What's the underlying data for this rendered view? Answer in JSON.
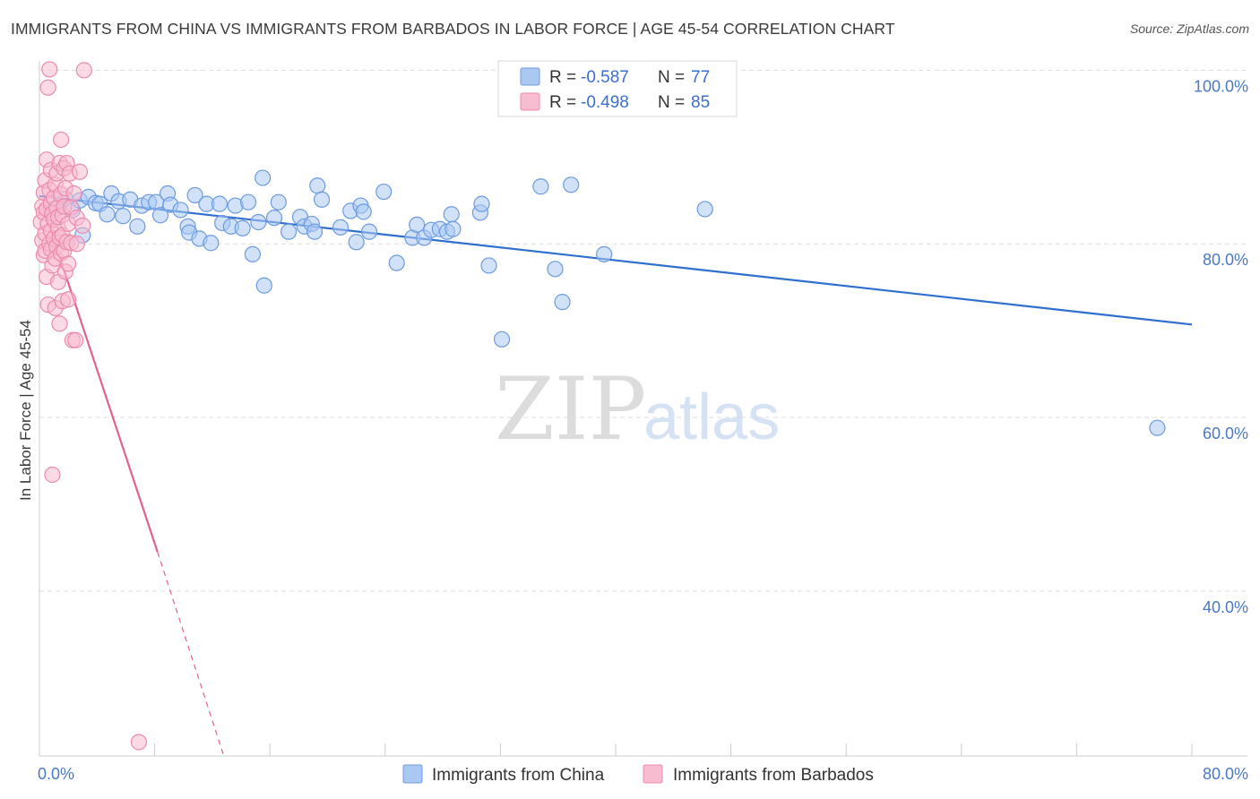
{
  "header": {
    "title": "IMMIGRANTS FROM CHINA VS IMMIGRANTS FROM BARBADOS IN LABOR FORCE | AGE 45-54 CORRELATION CHART",
    "source": "Source: ZipAtlas.com"
  },
  "watermark": {
    "zip": "ZIP",
    "atlas": "atlas"
  },
  "legend": {
    "china": {
      "r_label": "R =",
      "r_value": "-0.587",
      "n_label": "N =",
      "n_value": "77"
    },
    "barbados": {
      "r_label": "R =",
      "r_value": "-0.498",
      "n_label": "N =",
      "n_value": "85"
    }
  },
  "colors": {
    "china_fill": "#aac8f2",
    "china_stroke": "#6d9be0",
    "china_line": "#2f6fd0",
    "barbados_fill": "#f8bcd0",
    "barbados_stroke": "#ec8aad",
    "barbados_line": "#e5608f",
    "grid": "#dddddd",
    "tick_text": "#4a78c6"
  },
  "chart_data": {
    "type": "scatter",
    "title": "IMMIGRANTS FROM CHINA VS IMMIGRANTS FROM BARBADOS IN LABOR FORCE | AGE 45-54 CORRELATION CHART",
    "xlabel": "",
    "ylabel": "In Labor Force | Age 45-54",
    "xlim": [
      0,
      80
    ],
    "ylim": [
      21,
      102
    ],
    "x_tick_labels": [
      {
        "value": 0,
        "label": "0.0%"
      },
      {
        "value": 80,
        "label": "80.0%"
      }
    ],
    "y_tick_labels": [
      {
        "value": 100,
        "label": "100.0%"
      },
      {
        "value": 80,
        "label": "80.0%"
      },
      {
        "value": 60,
        "label": "60.0%"
      },
      {
        "value": 40,
        "label": "40.0%"
      }
    ],
    "y_gridlines": [
      100,
      80,
      60,
      40
    ],
    "series": [
      {
        "name": "Immigrants from China",
        "key": "china",
        "r": -0.587,
        "n": 77,
        "trend": {
          "x": [
            0,
            80
          ],
          "y": [
            85.5,
            70.7
          ]
        },
        "points": [
          [
            0.9,
            84.0
          ],
          [
            1.4,
            84.5
          ],
          [
            1.8,
            85.2
          ],
          [
            2.3,
            83.9
          ],
          [
            2.8,
            85.0
          ],
          [
            3.0,
            81.0
          ],
          [
            3.4,
            85.4
          ],
          [
            3.9,
            84.7
          ],
          [
            4.2,
            84.6
          ],
          [
            4.7,
            83.4
          ],
          [
            5.0,
            85.8
          ],
          [
            5.5,
            84.9
          ],
          [
            5.8,
            83.2
          ],
          [
            6.3,
            85.1
          ],
          [
            6.8,
            82.0
          ],
          [
            7.1,
            84.4
          ],
          [
            7.6,
            84.8
          ],
          [
            8.1,
            84.8
          ],
          [
            8.4,
            83.3
          ],
          [
            8.9,
            85.8
          ],
          [
            9.1,
            84.5
          ],
          [
            9.8,
            83.9
          ],
          [
            10.3,
            82.0
          ],
          [
            10.4,
            81.3
          ],
          [
            10.8,
            85.6
          ],
          [
            11.1,
            80.6
          ],
          [
            11.6,
            84.6
          ],
          [
            11.9,
            80.1
          ],
          [
            12.5,
            84.6
          ],
          [
            12.7,
            82.4
          ],
          [
            13.3,
            82.0
          ],
          [
            13.6,
            84.4
          ],
          [
            14.1,
            81.8
          ],
          [
            14.5,
            84.8
          ],
          [
            14.8,
            78.8
          ],
          [
            15.2,
            82.5
          ],
          [
            15.5,
            87.6
          ],
          [
            15.6,
            75.2
          ],
          [
            16.3,
            83.0
          ],
          [
            16.6,
            84.8
          ],
          [
            17.3,
            81.4
          ],
          [
            18.1,
            83.1
          ],
          [
            18.4,
            82.0
          ],
          [
            18.9,
            82.3
          ],
          [
            19.1,
            81.4
          ],
          [
            19.3,
            86.7
          ],
          [
            19.6,
            85.1
          ],
          [
            20.9,
            81.9
          ],
          [
            21.6,
            83.8
          ],
          [
            22.0,
            80.2
          ],
          [
            22.3,
            84.4
          ],
          [
            22.5,
            83.7
          ],
          [
            22.9,
            81.4
          ],
          [
            23.9,
            86.0
          ],
          [
            24.8,
            77.8
          ],
          [
            25.9,
            80.7
          ],
          [
            26.2,
            82.2
          ],
          [
            26.7,
            80.7
          ],
          [
            27.2,
            81.6
          ],
          [
            27.8,
            81.7
          ],
          [
            28.3,
            81.4
          ],
          [
            28.6,
            83.4
          ],
          [
            28.7,
            81.7
          ],
          [
            30.6,
            83.6
          ],
          [
            30.7,
            84.6
          ],
          [
            31.2,
            77.5
          ],
          [
            32.1,
            69.0
          ],
          [
            34.8,
            86.6
          ],
          [
            35.8,
            77.1
          ],
          [
            36.3,
            73.3
          ],
          [
            36.9,
            86.8
          ],
          [
            39.2,
            78.8
          ],
          [
            46.2,
            84.0
          ],
          [
            77.6,
            58.8
          ]
        ]
      },
      {
        "name": "Immigrants from Barbados",
        "key": "barbados",
        "r": -0.498,
        "n": 85,
        "trend": {
          "x": [
            0.2,
            8.2
          ],
          "y": [
            84.5,
            44.5
          ]
        },
        "trend_extension": {
          "x": [
            8.2,
            12.8
          ],
          "y": [
            44.5,
            21.0
          ]
        },
        "points": [
          [
            0.1,
            82.5
          ],
          [
            0.2,
            84.3
          ],
          [
            0.2,
            80.4
          ],
          [
            0.3,
            85.9
          ],
          [
            0.3,
            78.7
          ],
          [
            0.3,
            83.6
          ],
          [
            0.4,
            81.2
          ],
          [
            0.4,
            79.2
          ],
          [
            0.4,
            87.3
          ],
          [
            0.5,
            89.7
          ],
          [
            0.5,
            76.2
          ],
          [
            0.5,
            84.0
          ],
          [
            0.6,
            98.0
          ],
          [
            0.6,
            73.0
          ],
          [
            0.6,
            82.3
          ],
          [
            0.7,
            100.1
          ],
          [
            0.7,
            86.2
          ],
          [
            0.7,
            80.0
          ],
          [
            0.8,
            81.5
          ],
          [
            0.8,
            84.7
          ],
          [
            0.8,
            79.4
          ],
          [
            0.8,
            88.5
          ],
          [
            0.9,
            53.4
          ],
          [
            0.9,
            83.5
          ],
          [
            0.9,
            77.5
          ],
          [
            1.0,
            85.3
          ],
          [
            1.0,
            80.6
          ],
          [
            1.0,
            82.8
          ],
          [
            1.1,
            78.3
          ],
          [
            1.1,
            86.8
          ],
          [
            1.1,
            72.6
          ],
          [
            1.2,
            84.1
          ],
          [
            1.2,
            79.7
          ],
          [
            1.2,
            88.1
          ],
          [
            1.3,
            81.8
          ],
          [
            1.3,
            75.6
          ],
          [
            1.3,
            83.1
          ],
          [
            1.4,
            70.8
          ],
          [
            1.4,
            89.3
          ],
          [
            1.4,
            80.7
          ],
          [
            1.5,
            92.0
          ],
          [
            1.5,
            78.9
          ],
          [
            1.5,
            85.7
          ],
          [
            1.6,
            73.4
          ],
          [
            1.6,
            83.3
          ],
          [
            1.6,
            81.0
          ],
          [
            1.7,
            88.7
          ],
          [
            1.7,
            79.2
          ],
          [
            1.7,
            84.3
          ],
          [
            1.8,
            76.8
          ],
          [
            1.8,
            86.4
          ],
          [
            1.9,
            80.2
          ],
          [
            1.9,
            89.3
          ],
          [
            2.0,
            82.3
          ],
          [
            2.0,
            77.7
          ],
          [
            2.0,
            73.6
          ],
          [
            2.1,
            88.1
          ],
          [
            2.2,
            80.1
          ],
          [
            2.2,
            84.2
          ],
          [
            2.3,
            68.9
          ],
          [
            2.4,
            85.8
          ],
          [
            2.5,
            68.9
          ],
          [
            2.6,
            80.0
          ],
          [
            2.6,
            83.0
          ],
          [
            2.8,
            88.3
          ],
          [
            3.0,
            82.1
          ],
          [
            3.1,
            100.0
          ],
          [
            6.9,
            22.6
          ]
        ]
      }
    ]
  },
  "bottom_legend": {
    "china_label": "Immigrants from China",
    "barbados_label": "Immigrants from Barbados"
  }
}
